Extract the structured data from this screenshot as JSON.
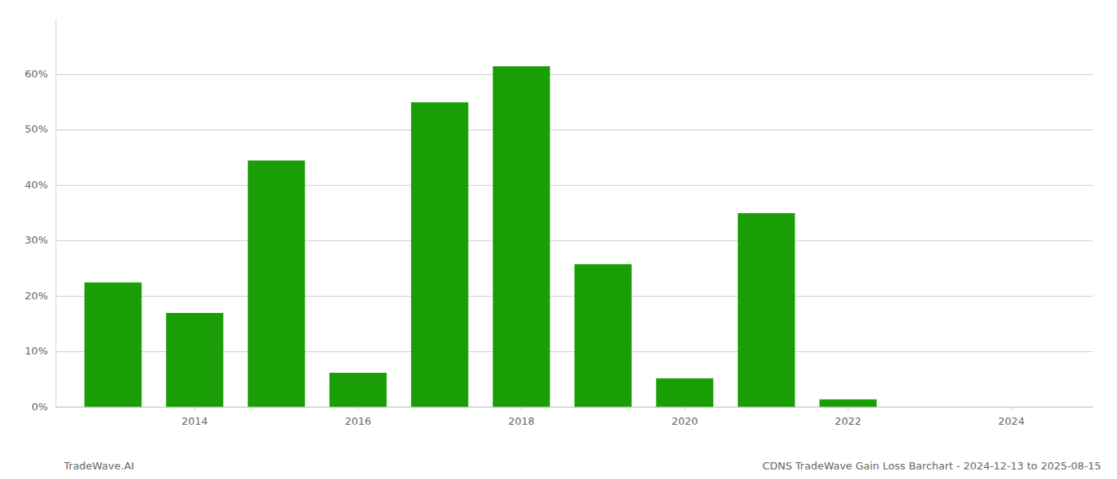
{
  "chart_data": {
    "type": "bar",
    "title": "CDNS TradeWave Gain Loss Barchart - 2024-12-13 to 2025-08-15",
    "annotations": [
      "TradeWave.AI"
    ],
    "x": [
      2013,
      2014,
      2015,
      2016,
      2017,
      2018,
      2019,
      2020,
      2021,
      2022,
      2023
    ],
    "values": [
      0.225,
      0.17,
      0.445,
      0.062,
      0.55,
      0.615,
      0.258,
      0.052,
      0.35,
      0.014,
      0.0
    ],
    "color": "#1a9e06",
    "xlim": [
      2012.3,
      2025
    ],
    "xticks": [
      2014,
      2016,
      2018,
      2020,
      2022,
      2024
    ],
    "ylim": [
      0,
      0.7
    ],
    "yticks": [
      {
        "value": 0.0,
        "label": "0%"
      },
      {
        "value": 0.1,
        "label": "10%"
      },
      {
        "value": 0.2,
        "label": "20%"
      },
      {
        "value": 0.3,
        "label": "30%"
      },
      {
        "value": 0.4,
        "label": "40%"
      },
      {
        "value": 0.5,
        "label": "50%"
      },
      {
        "value": 0.6,
        "label": "60%"
      }
    ],
    "grid": true
  }
}
